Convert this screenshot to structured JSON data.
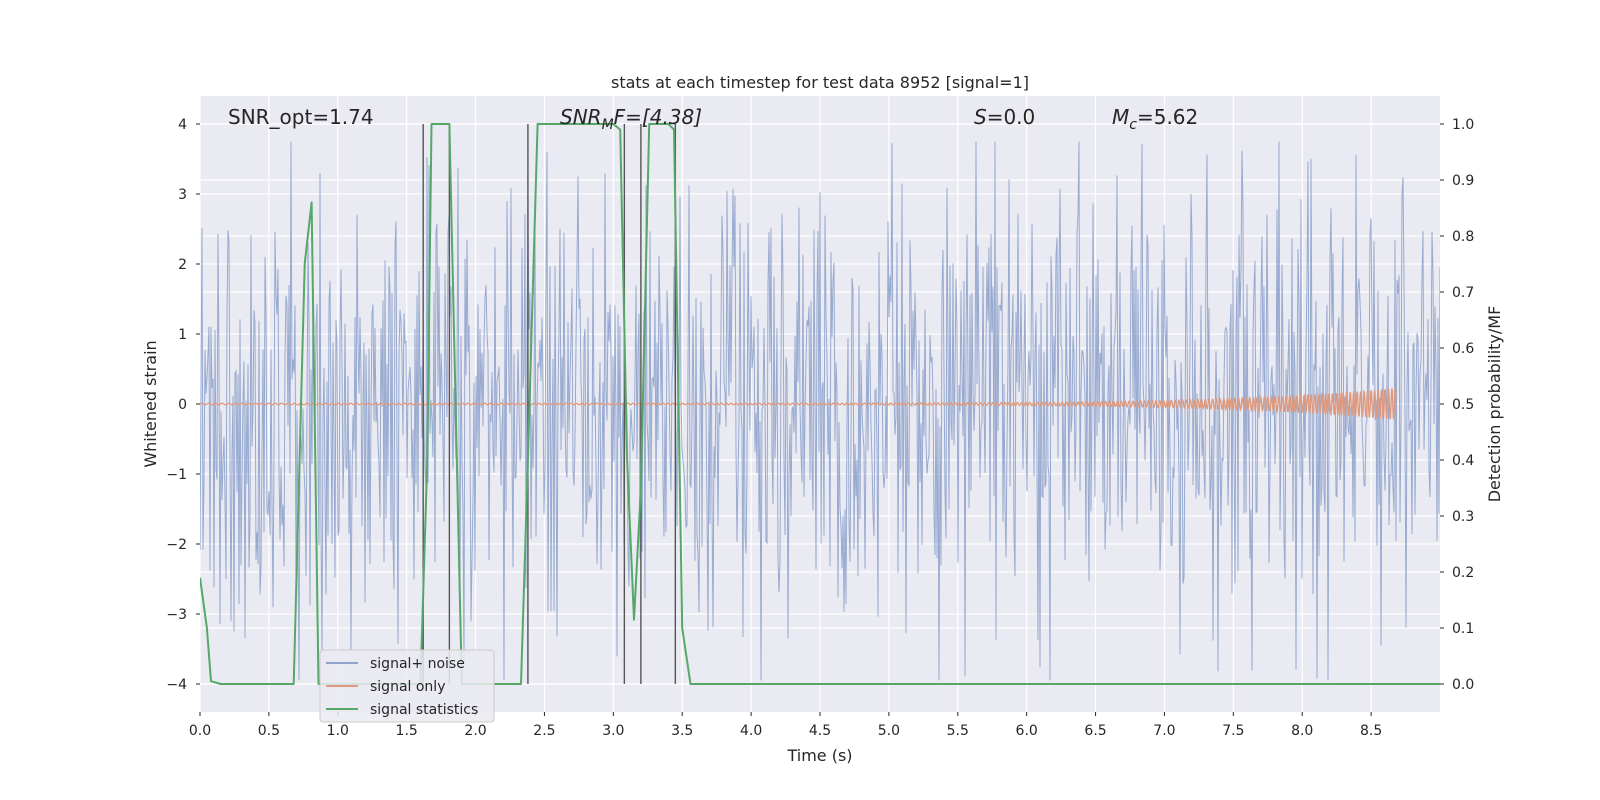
{
  "chart_data": {
    "type": "line",
    "title": "stats at each timestep for test data 8952 [signal=1]",
    "xlabel": "Time (s)",
    "ylabel_left": "Whitened strain",
    "ylabel_right": "Detection probability/MF",
    "xlim": [
      0.0,
      9.0
    ],
    "ylim_left": [
      -4.4,
      4.4
    ],
    "ylim_right": [
      -0.05,
      1.05
    ],
    "x_ticks": [
      0.0,
      0.5,
      1.0,
      1.5,
      2.0,
      2.5,
      3.0,
      3.5,
      4.0,
      4.5,
      5.0,
      5.5,
      6.0,
      6.5,
      7.0,
      7.5,
      8.0,
      8.5
    ],
    "x_tick_labels": [
      "0.0",
      "0.5",
      "1.0",
      "1.5",
      "2.0",
      "2.5",
      "3.0",
      "3.5",
      "4.0",
      "4.5",
      "5.0",
      "5.5",
      "6.0",
      "6.5",
      "7.0",
      "7.5",
      "8.0",
      "8.5"
    ],
    "y_left_ticks": [
      -4,
      -3,
      -2,
      -1,
      0,
      1,
      2,
      3,
      4
    ],
    "y_left_tick_labels": [
      "−4",
      "−3",
      "−2",
      "−1",
      "0",
      "1",
      "2",
      "3",
      "4"
    ],
    "y_right_ticks": [
      0.0,
      0.1,
      0.2,
      0.3,
      0.4,
      0.5,
      0.6,
      0.7,
      0.8,
      0.9,
      1.0
    ],
    "y_right_tick_labels": [
      "0.0",
      "0.1",
      "0.2",
      "0.3",
      "0.4",
      "0.5",
      "0.6",
      "0.7",
      "0.8",
      "0.9",
      "1.0"
    ],
    "grid": true,
    "legend_position": "lower-left",
    "legend": [
      {
        "label": "signal+ noise",
        "color": "#8fa3cc"
      },
      {
        "label": "signal only",
        "color": "#dd9a80"
      },
      {
        "label": "signal statistics",
        "color": "#55a868"
      }
    ],
    "annotations": {
      "snr_opt": "SNR_opt=1.74",
      "snr_mf_main": "SNR",
      "snr_mf_sub": "M",
      "snr_mf_rest": "F=[4.38]",
      "s_main": "S",
      "s_rest": "=0.0",
      "mc_main": "M",
      "mc_sub": "c",
      "mc_rest": "=5.62"
    },
    "noise_series": {
      "name": "signal+ noise",
      "color": "#8fa3cc",
      "x_range": [
        0.0,
        9.0
      ],
      "envelope": {
        "typical_max": 3.2,
        "typical_min": -2.9,
        "peak_max": 3.75,
        "peak_min": -3.95
      }
    },
    "signal_series": {
      "name": "signal only",
      "color": "#dd9a80",
      "x_range": [
        0.0,
        8.68
      ],
      "amplitude_at_end": 0.22
    },
    "statistics_series": {
      "name": "signal statistics",
      "color": "#55a868",
      "points": [
        [
          0.0,
          0.19
        ],
        [
          0.05,
          0.1
        ],
        [
          0.08,
          0.005
        ],
        [
          0.15,
          0.0
        ],
        [
          0.68,
          0.0
        ],
        [
          0.76,
          0.75
        ],
        [
          0.81,
          0.86
        ],
        [
          0.86,
          0.0
        ],
        [
          1.6,
          0.0
        ],
        [
          1.65,
          0.4
        ],
        [
          1.68,
          1.0
        ],
        [
          1.81,
          1.0
        ],
        [
          1.9,
          0.0
        ],
        [
          2.33,
          0.0
        ],
        [
          2.38,
          0.4
        ],
        [
          2.45,
          1.0
        ],
        [
          2.7,
          1.0
        ],
        [
          3.0,
          1.0
        ],
        [
          3.05,
          0.99
        ],
        [
          3.1,
          0.4
        ],
        [
          3.15,
          0.115
        ],
        [
          3.2,
          0.35
        ],
        [
          3.26,
          1.0
        ],
        [
          3.4,
          1.0
        ],
        [
          3.44,
          0.99
        ],
        [
          3.5,
          0.1
        ],
        [
          3.56,
          0.0
        ],
        [
          9.0,
          0.0
        ]
      ]
    },
    "vertical_markers": {
      "color": "#555555",
      "x_values": [
        1.62,
        1.81,
        2.38,
        3.08,
        3.2,
        3.45
      ],
      "y_range_right": [
        0.0,
        1.0
      ]
    }
  }
}
